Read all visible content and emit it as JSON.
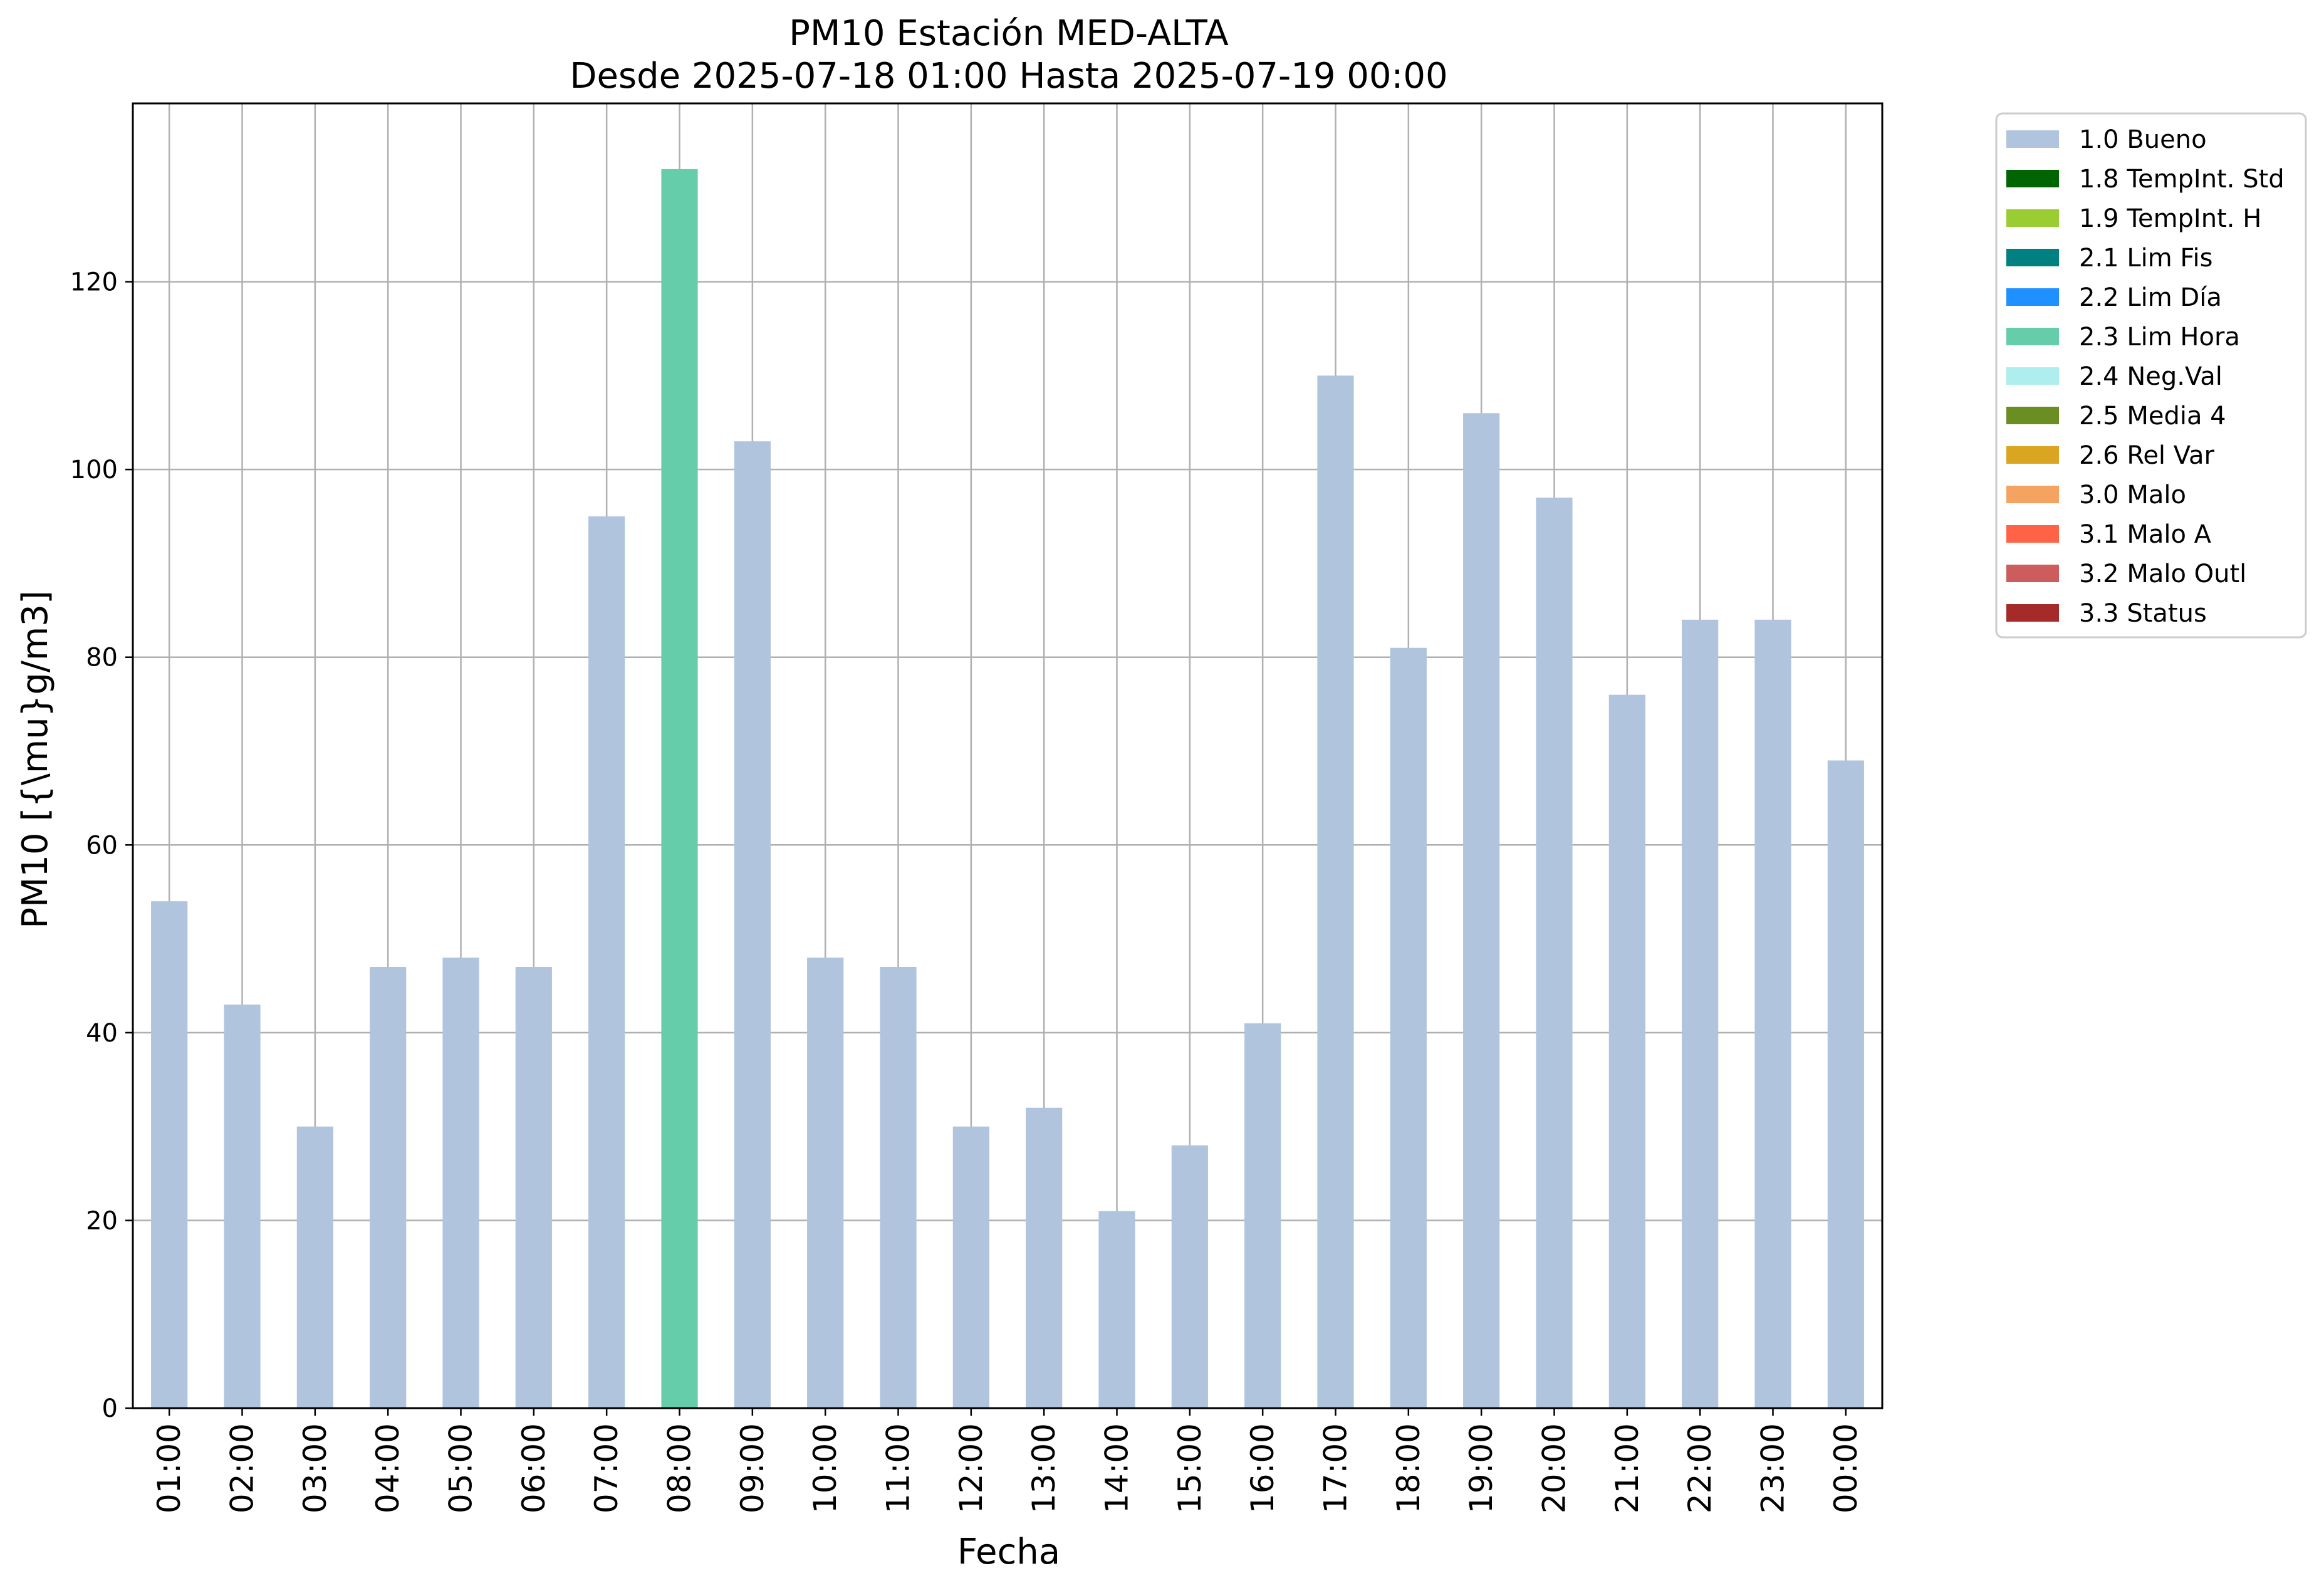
{
  "chart_data": {
    "type": "bar",
    "title": "PM10 Estación MED-ALTA",
    "subtitle": "Desde 2025-07-18 01:00 Hasta 2025-07-19 00:00",
    "xlabel": "Fecha",
    "ylabel": "PM10 [{\\mu}g/m3]",
    "ylim": [
      0,
      139
    ],
    "yticks": [
      0,
      20,
      40,
      60,
      80,
      100,
      120
    ],
    "grid": true,
    "legend_position": "outside-right-top",
    "categories": [
      "01:00",
      "02:00",
      "03:00",
      "04:00",
      "05:00",
      "06:00",
      "07:00",
      "08:00",
      "09:00",
      "10:00",
      "11:00",
      "12:00",
      "13:00",
      "14:00",
      "15:00",
      "16:00",
      "17:00",
      "18:00",
      "19:00",
      "20:00",
      "21:00",
      "22:00",
      "23:00",
      "00:00"
    ],
    "values": [
      54,
      43,
      30,
      47,
      48,
      47,
      95,
      132,
      103,
      48,
      47,
      30,
      32,
      21,
      28,
      41,
      110,
      81,
      106,
      97,
      76,
      84,
      84,
      69
    ],
    "flags": [
      "1.0 Bueno",
      "1.0 Bueno",
      "1.0 Bueno",
      "1.0 Bueno",
      "1.0 Bueno",
      "1.0 Bueno",
      "1.0 Bueno",
      "2.3 Lim Hora",
      "1.0 Bueno",
      "1.0 Bueno",
      "1.0 Bueno",
      "1.0 Bueno",
      "1.0 Bueno",
      "1.0 Bueno",
      "1.0 Bueno",
      "1.0 Bueno",
      "1.0 Bueno",
      "1.0 Bueno",
      "1.0 Bueno",
      "1.0 Bueno",
      "1.0 Bueno",
      "1.0 Bueno",
      "1.0 Bueno",
      "1.0 Bueno"
    ],
    "legend": [
      {
        "label": "1.0 Bueno",
        "color": "#b0c4de"
      },
      {
        "label": "1.8 TempInt. Std",
        "color": "#006400"
      },
      {
        "label": "1.9 TempInt. H",
        "color": "#9acd32"
      },
      {
        "label": "2.1 Lim Fis",
        "color": "#008080"
      },
      {
        "label": "2.2 Lim Día",
        "color": "#1e90ff"
      },
      {
        "label": "2.3 Lim Hora",
        "color": "#66cdaa"
      },
      {
        "label": "2.4 Neg.Val",
        "color": "#afeeee"
      },
      {
        "label": "2.5 Media 4",
        "color": "#6b8e23"
      },
      {
        "label": "2.6 Rel Var",
        "color": "#daa520"
      },
      {
        "label": "3.0 Malo",
        "color": "#f4a460"
      },
      {
        "label": "3.1 Malo A",
        "color": "#ff6347"
      },
      {
        "label": "3.2 Malo Outl",
        "color": "#cd5c5c"
      },
      {
        "label": "3.3 Status",
        "color": "#a52a2a"
      }
    ]
  }
}
